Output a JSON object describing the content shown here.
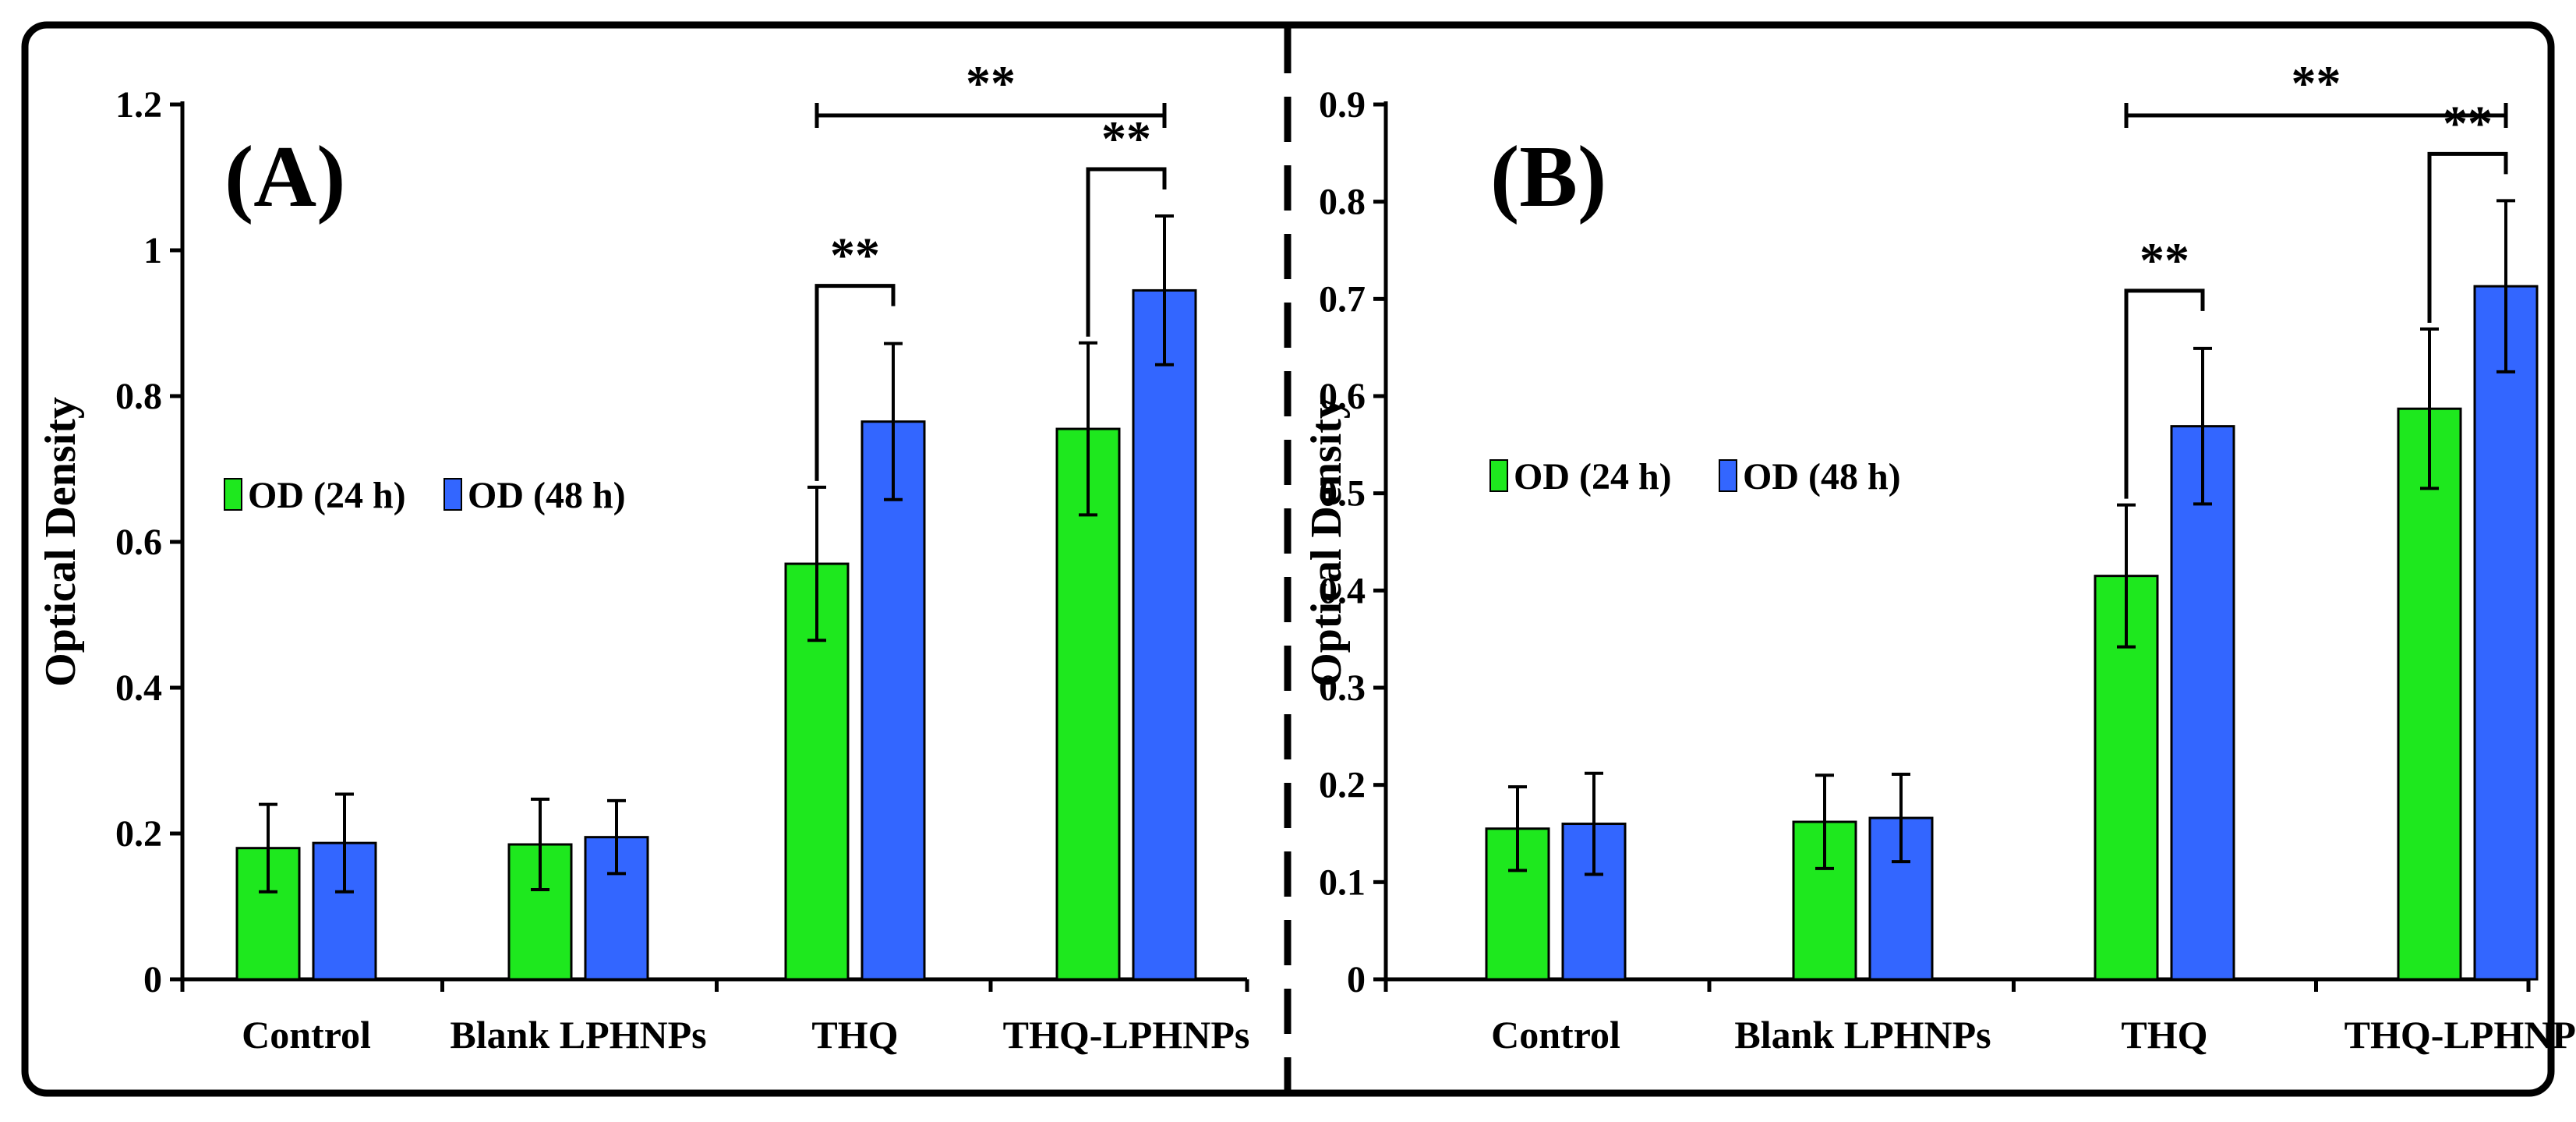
{
  "colors": {
    "od24": "#1EE81E",
    "od48": "#3366FF",
    "axis": "#000000",
    "frame": "#000000"
  },
  "chart_data": [
    {
      "type": "bar",
      "panel_label": "(A)",
      "ylabel": "Optical Density",
      "categories": [
        "Control",
        "Blank LPHNPs",
        "THQ",
        "THQ-LPHNPs"
      ],
      "yticks": [
        "0",
        "0.2",
        "0.4",
        "0.6",
        "0.8",
        "1",
        "1.2"
      ],
      "ylim": [
        0,
        1.2
      ],
      "series": [
        {
          "name": "OD (24 h)",
          "values": [
            0.18,
            0.185,
            0.57,
            0.755
          ],
          "errors": [
            0.06,
            0.062,
            0.105,
            0.118
          ]
        },
        {
          "name": "OD (48 h)",
          "values": [
            0.187,
            0.195,
            0.765,
            0.945
          ],
          "errors": [
            0.067,
            0.05,
            0.107,
            0.102
          ]
        }
      ],
      "significance": [
        {
          "label": "**",
          "from": "THQ (24 h)",
          "to": "THQ (48 h)"
        },
        {
          "label": "**",
          "from": "THQ-LPHNPs (24 h)",
          "to": "THQ-LPHNPs (48 h)"
        },
        {
          "label": "**",
          "from": "THQ (24 h)",
          "to": "THQ-LPHNPs (48 h)"
        }
      ],
      "legend_position": "middle-left"
    },
    {
      "type": "bar",
      "panel_label": "(B)",
      "ylabel": "Optical Density",
      "categories": [
        "Control",
        "Blank LPHNPs",
        "THQ",
        "THQ-LPHNPs"
      ],
      "yticks": [
        "0",
        "0.1",
        "0.2",
        "0.3",
        "0.4",
        "0.5",
        "0.6",
        "0.7",
        "0.8",
        "0.9"
      ],
      "ylim": [
        0,
        0.9
      ],
      "series": [
        {
          "name": "OD (24 h)",
          "values": [
            0.155,
            0.162,
            0.415,
            0.587
          ],
          "errors": [
            0.043,
            0.048,
            0.073,
            0.082
          ]
        },
        {
          "name": "OD (48 h)",
          "values": [
            0.16,
            0.166,
            0.569,
            0.713
          ],
          "errors": [
            0.052,
            0.045,
            0.08,
            0.088
          ]
        }
      ],
      "significance": [
        {
          "label": "**",
          "from": "THQ (24 h)",
          "to": "THQ (48 h)"
        },
        {
          "label": "**",
          "from": "THQ-LPHNPs (24 h)",
          "to": "THQ-LPHNPs (48 h)"
        },
        {
          "label": "**",
          "from": "THQ (24 h)",
          "to": "THQ-LPHNPs (48 h)"
        }
      ],
      "legend_position": "middle-left"
    }
  ]
}
